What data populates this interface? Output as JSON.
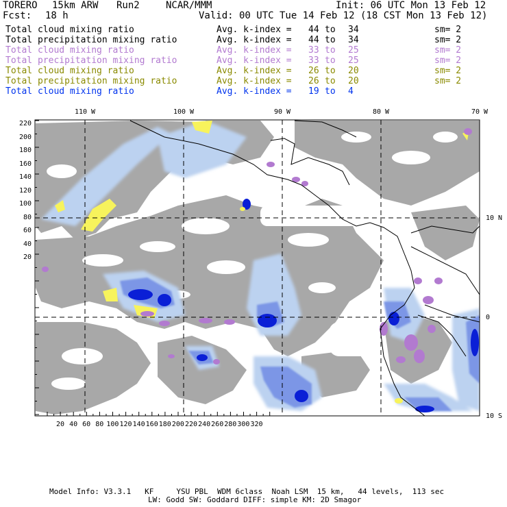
{
  "header": {
    "model": "TORERO",
    "resolution": "15km ARW",
    "run": "Run2",
    "org": "NCAR/MMM",
    "init": "Init: 06 UTC Mon 13 Feb 12",
    "fcst_label": "Fcst:",
    "fcst_value": "18 h",
    "valid": "Valid: 00 UTC Tue 14 Feb 12 (18 CST Mon 13 Feb 12)"
  },
  "legend": [
    {
      "field": "Total cloud mixing ratio",
      "avg": "Avg. k-index =",
      "from": "44",
      "to_word": "to",
      "to": "34",
      "sm": "sm= 2",
      "color": "#000000"
    },
    {
      "field": "Total precipitation mixing ratio",
      "avg": "Avg. k-index =",
      "from": "44",
      "to_word": "to",
      "to": "34",
      "sm": "sm= 2",
      "color": "#000000"
    },
    {
      "field": "Total cloud mixing ratio",
      "avg": "Avg. k-index =",
      "from": "33",
      "to_word": "to",
      "to": "25",
      "sm": "sm= 2",
      "color": "#b27ad0"
    },
    {
      "field": "Total precipitation mixing ratio",
      "avg": "Avg. k-index =",
      "from": "33",
      "to_word": "to",
      "to": "25",
      "sm": "sm= 2",
      "color": "#b27ad0"
    },
    {
      "field": "Total cloud mixing ratio",
      "avg": "Avg. k-index =",
      "from": "26",
      "to_word": "to",
      "to": "20",
      "sm": "sm= 2",
      "color": "#8a8a00"
    },
    {
      "field": "Total precipitation mixing ratio",
      "avg": "Avg. k-index =",
      "from": "26",
      "to_word": "to",
      "to": "20",
      "sm": "sm= 2",
      "color": "#8a8a00"
    },
    {
      "field": "Total cloud mixing ratio",
      "avg": "Avg. k-index =",
      "from": "19",
      "to_word": "to",
      "to": "4",
      "sm": "",
      "color": "#0033ee"
    }
  ],
  "axes": {
    "top_lon": [
      "110 W",
      "100 W",
      "90 W",
      "80 W",
      "70 W"
    ],
    "right_lat": [
      "10 N",
      "0",
      "10 S"
    ],
    "left_y": [
      "220",
      "200",
      "180",
      "160",
      "140",
      "120",
      "100",
      "80",
      "60",
      "40",
      "20"
    ],
    "bottom_x": [
      "20",
      "40",
      "60",
      "80",
      "100",
      "120",
      "140",
      "160",
      "180",
      "200",
      "220",
      "240",
      "260",
      "280",
      "300",
      "320"
    ]
  },
  "footer": {
    "line1": "Model Info: V3.3.1   KF     YSU PBL  WDM 6class  Noah LSM  15 km,   44 levels,  113 sec",
    "line2": "LW: Godd SW: Goddard DIFF: simple KM: 2D Smagor"
  }
}
